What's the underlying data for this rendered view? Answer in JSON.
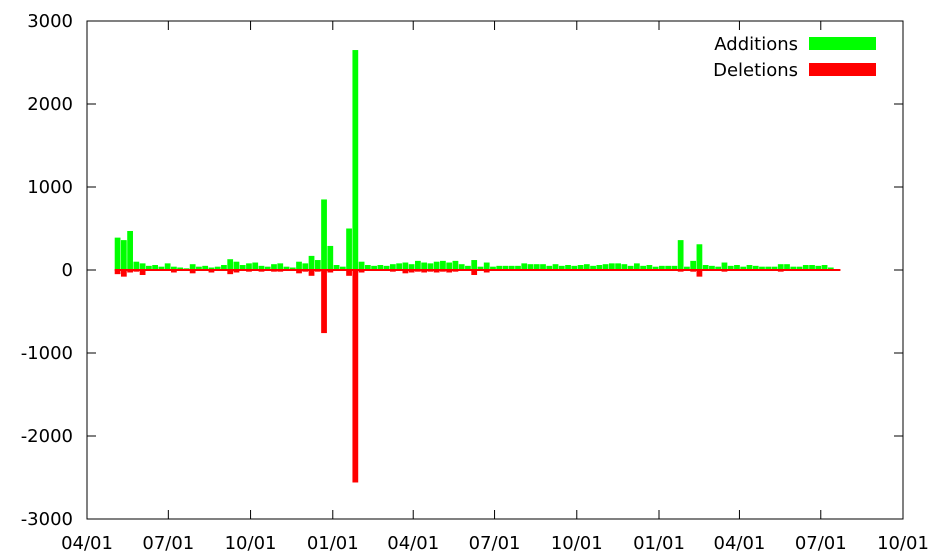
{
  "chart_data": {
    "type": "bar",
    "title": "",
    "xlabel": "",
    "ylabel": "",
    "ylim": [
      -3000,
      3000
    ],
    "yticks": [
      "3000",
      "2000",
      "1000",
      "0",
      "-1000",
      "-2000",
      "-3000"
    ],
    "ytick_values": [
      3000,
      2000,
      1000,
      0,
      -1000,
      -2000,
      -3000
    ],
    "xticks": [
      "04/01",
      "07/01",
      "10/01",
      "01/01",
      "04/01",
      "07/01",
      "10/01",
      "01/01",
      "04/01",
      "07/01",
      "10/01"
    ],
    "xtick_values": [
      "2016-04-01",
      "2016-07-01",
      "2016-10-01",
      "2017-01-01",
      "2017-04-01",
      "2017-07-01",
      "2017-10-01",
      "2018-01-01",
      "2018-04-01",
      "2018-07-01",
      "2018-10-01"
    ],
    "xlim": [
      "2016-04-01",
      "2018-10-01"
    ],
    "grid": false,
    "legend_position": "top-right",
    "series": [
      {
        "name": "Additions",
        "color": "#00ff00",
        "data": [
          [
            "2016-05-02",
            390
          ],
          [
            "2016-05-09",
            360
          ],
          [
            "2016-05-16",
            470
          ],
          [
            "2016-05-23",
            100
          ],
          [
            "2016-05-30",
            80
          ],
          [
            "2016-06-06",
            50
          ],
          [
            "2016-06-13",
            60
          ],
          [
            "2016-06-20",
            40
          ],
          [
            "2016-06-27",
            80
          ],
          [
            "2016-07-04",
            40
          ],
          [
            "2016-07-11",
            30
          ],
          [
            "2016-07-18",
            20
          ],
          [
            "2016-07-25",
            70
          ],
          [
            "2016-08-01",
            40
          ],
          [
            "2016-08-08",
            50
          ],
          [
            "2016-08-15",
            30
          ],
          [
            "2016-08-22",
            40
          ],
          [
            "2016-08-29",
            60
          ],
          [
            "2016-09-05",
            130
          ],
          [
            "2016-09-12",
            100
          ],
          [
            "2016-09-19",
            60
          ],
          [
            "2016-09-26",
            80
          ],
          [
            "2016-10-03",
            90
          ],
          [
            "2016-10-10",
            50
          ],
          [
            "2016-10-17",
            40
          ],
          [
            "2016-10-24",
            70
          ],
          [
            "2016-10-31",
            80
          ],
          [
            "2016-11-07",
            40
          ],
          [
            "2016-11-14",
            30
          ],
          [
            "2016-11-21",
            100
          ],
          [
            "2016-11-28",
            80
          ],
          [
            "2016-12-05",
            170
          ],
          [
            "2016-12-12",
            120
          ],
          [
            "2016-12-19",
            850
          ],
          [
            "2016-12-26",
            290
          ],
          [
            "2017-01-02",
            60
          ],
          [
            "2017-01-09",
            40
          ],
          [
            "2017-01-16",
            500
          ],
          [
            "2017-01-23",
            2650
          ],
          [
            "2017-01-30",
            100
          ],
          [
            "2017-02-06",
            60
          ],
          [
            "2017-02-13",
            50
          ],
          [
            "2017-02-20",
            60
          ],
          [
            "2017-02-27",
            50
          ],
          [
            "2017-03-06",
            70
          ],
          [
            "2017-03-13",
            80
          ],
          [
            "2017-03-20",
            90
          ],
          [
            "2017-03-27",
            70
          ],
          [
            "2017-04-03",
            110
          ],
          [
            "2017-04-10",
            90
          ],
          [
            "2017-04-17",
            80
          ],
          [
            "2017-04-24",
            100
          ],
          [
            "2017-05-01",
            110
          ],
          [
            "2017-05-08",
            90
          ],
          [
            "2017-05-15",
            110
          ],
          [
            "2017-05-22",
            70
          ],
          [
            "2017-05-29",
            50
          ],
          [
            "2017-06-05",
            120
          ],
          [
            "2017-06-12",
            40
          ],
          [
            "2017-06-19",
            90
          ],
          [
            "2017-06-26",
            40
          ],
          [
            "2017-07-03",
            50
          ],
          [
            "2017-07-10",
            50
          ],
          [
            "2017-07-17",
            50
          ],
          [
            "2017-07-24",
            50
          ],
          [
            "2017-07-31",
            80
          ],
          [
            "2017-08-07",
            70
          ],
          [
            "2017-08-14",
            70
          ],
          [
            "2017-08-21",
            70
          ],
          [
            "2017-08-28",
            50
          ],
          [
            "2017-09-04",
            70
          ],
          [
            "2017-09-11",
            50
          ],
          [
            "2017-09-18",
            60
          ],
          [
            "2017-09-25",
            50
          ],
          [
            "2017-10-02",
            60
          ],
          [
            "2017-10-09",
            70
          ],
          [
            "2017-10-16",
            50
          ],
          [
            "2017-10-23",
            60
          ],
          [
            "2017-10-30",
            70
          ],
          [
            "2017-11-06",
            80
          ],
          [
            "2017-11-13",
            80
          ],
          [
            "2017-11-20",
            70
          ],
          [
            "2017-11-27",
            50
          ],
          [
            "2017-12-04",
            80
          ],
          [
            "2017-12-11",
            50
          ],
          [
            "2017-12-18",
            60
          ],
          [
            "2017-12-25",
            40
          ],
          [
            "2018-01-01",
            50
          ],
          [
            "2018-01-08",
            50
          ],
          [
            "2018-01-15",
            50
          ],
          [
            "2018-01-22",
            360
          ],
          [
            "2018-01-29",
            40
          ],
          [
            "2018-02-05",
            110
          ],
          [
            "2018-02-12",
            310
          ],
          [
            "2018-02-19",
            60
          ],
          [
            "2018-02-26",
            50
          ],
          [
            "2018-03-05",
            40
          ],
          [
            "2018-03-12",
            90
          ],
          [
            "2018-03-19",
            50
          ],
          [
            "2018-03-26",
            60
          ],
          [
            "2018-04-02",
            40
          ],
          [
            "2018-04-09",
            60
          ],
          [
            "2018-04-16",
            50
          ],
          [
            "2018-04-23",
            40
          ],
          [
            "2018-04-30",
            40
          ],
          [
            "2018-05-07",
            40
          ],
          [
            "2018-05-14",
            70
          ],
          [
            "2018-05-21",
            70
          ],
          [
            "2018-05-28",
            40
          ],
          [
            "2018-06-04",
            40
          ],
          [
            "2018-06-11",
            60
          ],
          [
            "2018-06-18",
            60
          ],
          [
            "2018-06-25",
            50
          ],
          [
            "2018-07-02",
            60
          ],
          [
            "2018-07-09",
            30
          ],
          [
            "2018-07-16",
            10
          ]
        ]
      },
      {
        "name": "Deletions",
        "color": "#ff0000",
        "data": [
          [
            "2016-05-02",
            -50
          ],
          [
            "2016-05-09",
            -80
          ],
          [
            "2016-05-16",
            -30
          ],
          [
            "2016-05-23",
            -20
          ],
          [
            "2016-05-30",
            -60
          ],
          [
            "2016-06-06",
            -10
          ],
          [
            "2016-06-13",
            -10
          ],
          [
            "2016-06-20",
            -10
          ],
          [
            "2016-06-27",
            -10
          ],
          [
            "2016-07-04",
            -30
          ],
          [
            "2016-07-11",
            -10
          ],
          [
            "2016-07-18",
            -10
          ],
          [
            "2016-07-25",
            -40
          ],
          [
            "2016-08-01",
            -10
          ],
          [
            "2016-08-08",
            -10
          ],
          [
            "2016-08-15",
            -30
          ],
          [
            "2016-08-22",
            -10
          ],
          [
            "2016-08-29",
            -10
          ],
          [
            "2016-09-05",
            -50
          ],
          [
            "2016-09-12",
            -30
          ],
          [
            "2016-09-19",
            -10
          ],
          [
            "2016-09-26",
            -20
          ],
          [
            "2016-10-03",
            -10
          ],
          [
            "2016-10-10",
            -20
          ],
          [
            "2016-10-17",
            -10
          ],
          [
            "2016-10-24",
            -20
          ],
          [
            "2016-10-31",
            -20
          ],
          [
            "2016-11-07",
            -10
          ],
          [
            "2016-11-14",
            -10
          ],
          [
            "2016-11-21",
            -40
          ],
          [
            "2016-11-28",
            -20
          ],
          [
            "2016-12-05",
            -70
          ],
          [
            "2016-12-12",
            -20
          ],
          [
            "2016-12-19",
            -760
          ],
          [
            "2016-12-26",
            -30
          ],
          [
            "2017-01-02",
            -10
          ],
          [
            "2017-01-09",
            -10
          ],
          [
            "2017-01-16",
            -70
          ],
          [
            "2017-01-23",
            -2560
          ],
          [
            "2017-01-30",
            -30
          ],
          [
            "2017-02-06",
            -10
          ],
          [
            "2017-02-13",
            -10
          ],
          [
            "2017-02-20",
            -10
          ],
          [
            "2017-02-27",
            -10
          ],
          [
            "2017-03-06",
            -20
          ],
          [
            "2017-03-13",
            -10
          ],
          [
            "2017-03-20",
            -40
          ],
          [
            "2017-03-27",
            -30
          ],
          [
            "2017-04-03",
            -20
          ],
          [
            "2017-04-10",
            -30
          ],
          [
            "2017-04-17",
            -20
          ],
          [
            "2017-04-24",
            -30
          ],
          [
            "2017-05-01",
            -20
          ],
          [
            "2017-05-08",
            -30
          ],
          [
            "2017-05-15",
            -20
          ],
          [
            "2017-05-22",
            -10
          ],
          [
            "2017-05-29",
            -10
          ],
          [
            "2017-06-05",
            -60
          ],
          [
            "2017-06-12",
            -10
          ],
          [
            "2017-06-19",
            -30
          ],
          [
            "2017-06-26",
            -10
          ],
          [
            "2017-07-03",
            -10
          ],
          [
            "2017-07-10",
            -10
          ],
          [
            "2017-07-17",
            -10
          ],
          [
            "2017-07-24",
            -10
          ],
          [
            "2017-07-31",
            -10
          ],
          [
            "2017-08-07",
            -10
          ],
          [
            "2017-08-14",
            -10
          ],
          [
            "2017-08-21",
            -10
          ],
          [
            "2017-08-28",
            -10
          ],
          [
            "2017-09-04",
            -10
          ],
          [
            "2017-09-11",
            -10
          ],
          [
            "2017-09-18",
            -10
          ],
          [
            "2017-09-25",
            -10
          ],
          [
            "2017-10-02",
            -10
          ],
          [
            "2017-10-09",
            -10
          ],
          [
            "2017-10-16",
            -10
          ],
          [
            "2017-10-23",
            -10
          ],
          [
            "2017-10-30",
            -10
          ],
          [
            "2017-11-06",
            -10
          ],
          [
            "2017-11-13",
            -10
          ],
          [
            "2017-11-20",
            -10
          ],
          [
            "2017-11-27",
            -10
          ],
          [
            "2017-12-04",
            -10
          ],
          [
            "2017-12-11",
            -10
          ],
          [
            "2017-12-18",
            -10
          ],
          [
            "2017-12-25",
            -10
          ],
          [
            "2018-01-01",
            -10
          ],
          [
            "2018-01-08",
            -10
          ],
          [
            "2018-01-15",
            -10
          ],
          [
            "2018-01-22",
            -20
          ],
          [
            "2018-01-29",
            -10
          ],
          [
            "2018-02-05",
            -20
          ],
          [
            "2018-02-12",
            -80
          ],
          [
            "2018-02-19",
            -10
          ],
          [
            "2018-02-26",
            -10
          ],
          [
            "2018-03-05",
            -10
          ],
          [
            "2018-03-12",
            -20
          ],
          [
            "2018-03-19",
            -10
          ],
          [
            "2018-03-26",
            -10
          ],
          [
            "2018-04-02",
            -10
          ],
          [
            "2018-04-09",
            -10
          ],
          [
            "2018-04-16",
            -10
          ],
          [
            "2018-04-23",
            -10
          ],
          [
            "2018-04-30",
            -10
          ],
          [
            "2018-05-07",
            -10
          ],
          [
            "2018-05-14",
            -20
          ],
          [
            "2018-05-21",
            -10
          ],
          [
            "2018-05-28",
            -10
          ],
          [
            "2018-06-04",
            -10
          ],
          [
            "2018-06-11",
            -10
          ],
          [
            "2018-06-18",
            -10
          ],
          [
            "2018-06-25",
            -10
          ],
          [
            "2018-07-02",
            -10
          ],
          [
            "2018-07-09",
            -10
          ],
          [
            "2018-07-16",
            -5
          ]
        ]
      }
    ]
  }
}
